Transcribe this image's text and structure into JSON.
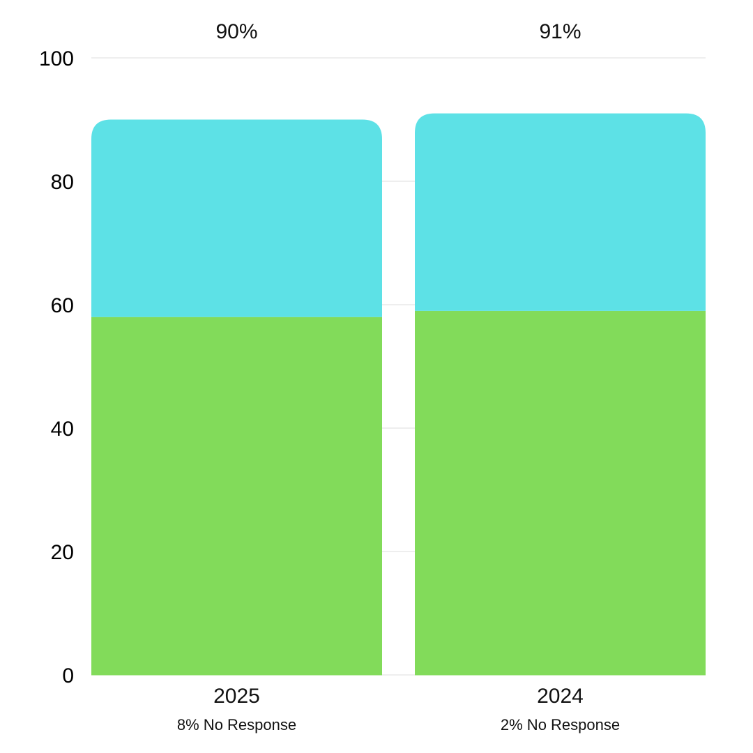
{
  "chart_data": {
    "type": "bar",
    "stacked": true,
    "categories": [
      "2025",
      "2024"
    ],
    "category_notes": [
      "8% No Response",
      "2% No Response"
    ],
    "totals_labels": [
      "90%",
      "91%"
    ],
    "series": [
      {
        "values": [
          58,
          59
        ],
        "color": "#82db5a"
      },
      {
        "values": [
          32,
          32
        ],
        "color": "#5de1e6"
      }
    ],
    "ylim": [
      0,
      100
    ],
    "yticks": [
      0,
      20,
      40,
      60,
      80,
      100
    ],
    "grid": true,
    "legend": "none",
    "title": "",
    "xlabel": "",
    "ylabel": "",
    "gridline_color": "#dddddd"
  }
}
